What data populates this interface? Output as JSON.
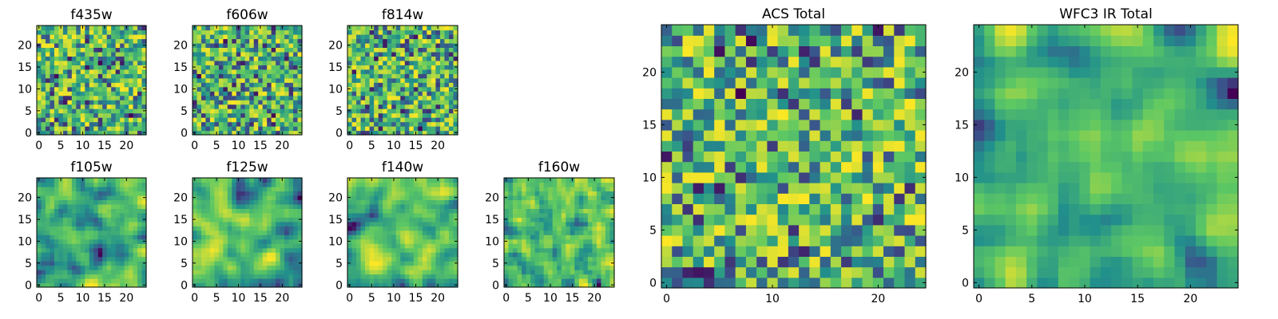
{
  "chart_data": [
    {
      "type": "heatmap",
      "title": "f435w",
      "rows": 25,
      "cols": 25,
      "seed": 11,
      "smooth": 0,
      "xticks": [
        0,
        5,
        10,
        15,
        20
      ],
      "yticks": [
        0,
        5,
        10,
        15,
        20
      ],
      "xlim": [
        -0.5,
        24.5
      ],
      "ylim": [
        -0.5,
        24.5
      ],
      "colormap": "viridis"
    },
    {
      "type": "heatmap",
      "title": "f606w",
      "rows": 25,
      "cols": 25,
      "seed": 23,
      "smooth": 0,
      "xticks": [
        0,
        5,
        10,
        15,
        20
      ],
      "yticks": [
        0,
        5,
        10,
        15,
        20
      ],
      "xlim": [
        -0.5,
        24.5
      ],
      "ylim": [
        -0.5,
        24.5
      ],
      "colormap": "viridis"
    },
    {
      "type": "heatmap",
      "title": "f814w",
      "rows": 25,
      "cols": 25,
      "seed": 37,
      "smooth": 0,
      "xticks": [
        0,
        5,
        10,
        15,
        20
      ],
      "yticks": [
        0,
        5,
        10,
        15,
        20
      ],
      "xlim": [
        -0.5,
        24.5
      ],
      "ylim": [
        -0.5,
        24.5
      ],
      "colormap": "viridis"
    },
    {
      "type": "heatmap",
      "title": "f105w",
      "rows": 25,
      "cols": 25,
      "seed": 41,
      "smooth": 2,
      "xticks": [
        0,
        5,
        10,
        15,
        20
      ],
      "yticks": [
        0,
        5,
        10,
        15,
        20
      ],
      "xlim": [
        -0.5,
        24.5
      ],
      "ylim": [
        -0.5,
        24.5
      ],
      "colormap": "viridis"
    },
    {
      "type": "heatmap",
      "title": "f125w",
      "rows": 25,
      "cols": 25,
      "seed": 53,
      "smooth": 2,
      "xticks": [
        0,
        5,
        10,
        15,
        20
      ],
      "yticks": [
        0,
        5,
        10,
        15,
        20
      ],
      "xlim": [
        -0.5,
        24.5
      ],
      "ylim": [
        -0.5,
        24.5
      ],
      "colormap": "viridis"
    },
    {
      "type": "heatmap",
      "title": "f140w",
      "rows": 25,
      "cols": 25,
      "seed": 67,
      "smooth": 2,
      "xticks": [
        0,
        5,
        10,
        15,
        20
      ],
      "yticks": [
        0,
        5,
        10,
        15,
        20
      ],
      "xlim": [
        -0.5,
        24.5
      ],
      "ylim": [
        -0.5,
        24.5
      ],
      "colormap": "viridis"
    },
    {
      "type": "heatmap",
      "title": "f160w",
      "rows": 25,
      "cols": 25,
      "seed": 79,
      "smooth": 1,
      "xticks": [
        0,
        5,
        10,
        15,
        20
      ],
      "yticks": [
        0,
        5,
        10,
        15,
        20
      ],
      "xlim": [
        -0.5,
        24.5
      ],
      "ylim": [
        -0.5,
        24.5
      ],
      "colormap": "viridis"
    },
    {
      "type": "heatmap",
      "title": "ACS Total",
      "rows": 25,
      "cols": 25,
      "seed": 97,
      "smooth": 0,
      "xticks": [
        0,
        10,
        20
      ],
      "yticks": [
        0,
        5,
        10,
        15,
        20
      ],
      "xlim": [
        -0.5,
        24.5
      ],
      "ylim": [
        -0.5,
        24.5
      ],
      "colormap": "viridis"
    },
    {
      "type": "heatmap",
      "title": "WFC3 IR Total",
      "rows": 25,
      "cols": 25,
      "seed": 113,
      "smooth": 2,
      "xticks": [
        0,
        5,
        10,
        15,
        20
      ],
      "yticks": [
        0,
        5,
        10,
        15,
        20
      ],
      "xlim": [
        -0.5,
        24.5
      ],
      "ylim": [
        -0.5,
        24.5
      ],
      "colormap": "viridis"
    }
  ],
  "colors": {
    "viridis": [
      "#440154",
      "#3b528b",
      "#21908c",
      "#5dc863",
      "#fde725"
    ],
    "axis": "#000000",
    "background": "#ffffff"
  }
}
